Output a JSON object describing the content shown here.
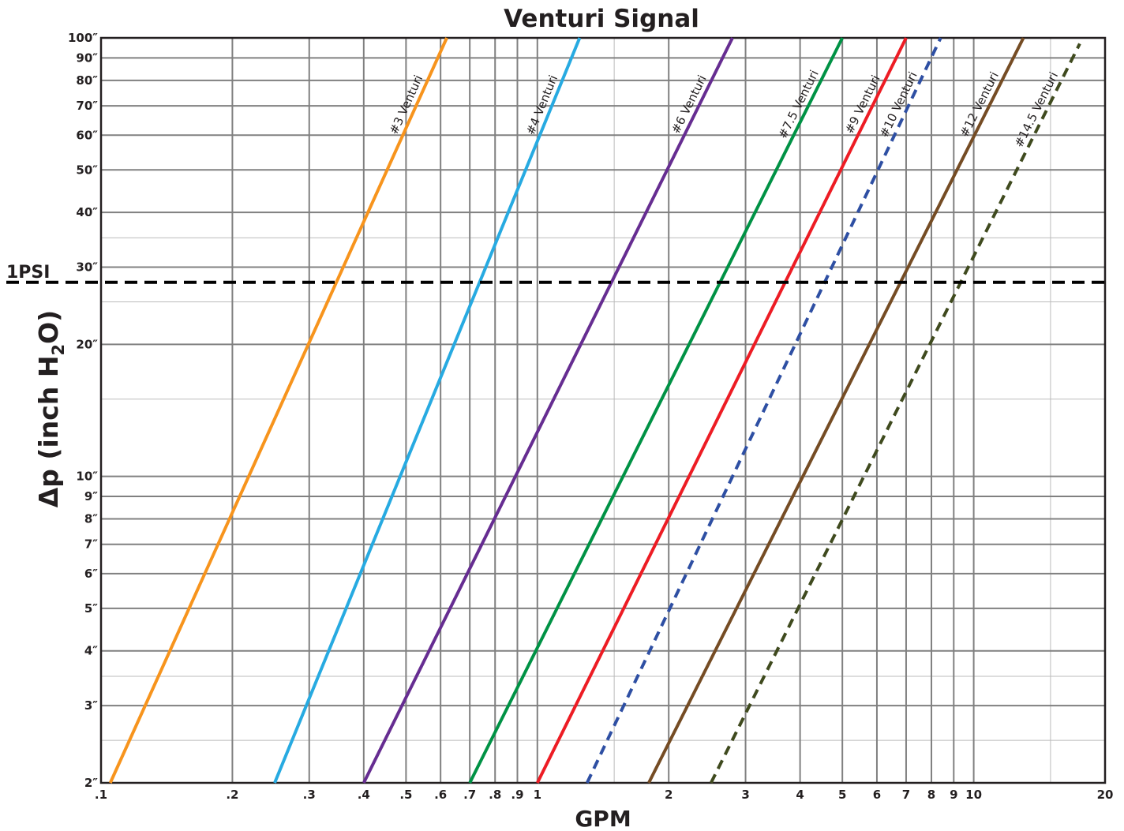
{
  "chart_data": {
    "type": "line",
    "title": "Venturi Signal",
    "xlabel": "GPM",
    "ylabel_main": "Δp (inch H",
    "ylabel_sub": "2",
    "ylabel_tail": "O)",
    "x_scale": "log",
    "y_scale": "log",
    "xlim": [
      0.1,
      20
    ],
    "ylim": [
      2,
      100
    ],
    "grid": true,
    "x_ticks": [
      {
        "v": 0.1,
        "label": ".1"
      },
      {
        "v": 0.2,
        "label": ".2"
      },
      {
        "v": 0.3,
        "label": ".3"
      },
      {
        "v": 0.4,
        "label": ".4"
      },
      {
        "v": 0.5,
        "label": ".5"
      },
      {
        "v": 0.6,
        "label": ".6"
      },
      {
        "v": 0.7,
        "label": ".7"
      },
      {
        "v": 0.8,
        "label": ".8"
      },
      {
        "v": 0.9,
        "label": ".9"
      },
      {
        "v": 1,
        "label": "1"
      },
      {
        "v": 2,
        "label": "2"
      },
      {
        "v": 3,
        "label": "3"
      },
      {
        "v": 4,
        "label": "4"
      },
      {
        "v": 5,
        "label": "5"
      },
      {
        "v": 6,
        "label": "6"
      },
      {
        "v": 7,
        "label": "7"
      },
      {
        "v": 8,
        "label": "8"
      },
      {
        "v": 9,
        "label": "9"
      },
      {
        "v": 10,
        "label": "10"
      },
      {
        "v": 20,
        "label": "20"
      }
    ],
    "y_ticks": [
      {
        "v": 2,
        "label": "2″"
      },
      {
        "v": 3,
        "label": "3″"
      },
      {
        "v": 4,
        "label": "4″"
      },
      {
        "v": 5,
        "label": "5″"
      },
      {
        "v": 6,
        "label": "6″"
      },
      {
        "v": 7,
        "label": "7″"
      },
      {
        "v": 8,
        "label": "8″"
      },
      {
        "v": 9,
        "label": "9″"
      },
      {
        "v": 10,
        "label": "10″"
      },
      {
        "v": 20,
        "label": "20″"
      },
      {
        "v": 30,
        "label": "30″"
      },
      {
        "v": 40,
        "label": "40″"
      },
      {
        "v": 50,
        "label": "50″"
      },
      {
        "v": 60,
        "label": "60″"
      },
      {
        "v": 70,
        "label": "70″"
      },
      {
        "v": 80,
        "label": "80″"
      },
      {
        "v": 90,
        "label": "90″"
      },
      {
        "v": 100,
        "label": "100″"
      }
    ],
    "x_minor_grid": [
      1.5,
      15
    ],
    "y_minor_grid": [
      2.5,
      3.5,
      15,
      25,
      35
    ],
    "reference_line": {
      "label": "1PSI",
      "y": 27.7,
      "style": "dashed",
      "color": "#000000"
    },
    "series": [
      {
        "name": "#3 Venturi",
        "color": "#f7941d",
        "dash": false,
        "points": [
          [
            0.105,
            2
          ],
          [
            0.62,
            100
          ]
        ]
      },
      {
        "name": "#4 Venturi",
        "color": "#27aae1",
        "dash": false,
        "points": [
          [
            0.25,
            2
          ],
          [
            1.25,
            100
          ]
        ]
      },
      {
        "name": "#6 Venturi",
        "color": "#662d91",
        "dash": false,
        "points": [
          [
            0.4,
            2
          ],
          [
            2.8,
            100
          ]
        ]
      },
      {
        "name": "#7.5 Venturi",
        "color": "#009245",
        "dash": false,
        "points": [
          [
            0.7,
            2
          ],
          [
            5.0,
            100
          ]
        ]
      },
      {
        "name": "#9 Venturi",
        "color": "#ed1c24",
        "dash": false,
        "points": [
          [
            1.0,
            2
          ],
          [
            7.0,
            100
          ]
        ]
      },
      {
        "name": "#10 Venturi",
        "color": "#2e4fa3",
        "dash": true,
        "points": [
          [
            1.3,
            2
          ],
          [
            8.4,
            100
          ]
        ]
      },
      {
        "name": "#12 Venturi",
        "color": "#754c24",
        "dash": false,
        "points": [
          [
            1.8,
            2
          ],
          [
            13.0,
            100
          ]
        ]
      },
      {
        "name": "#14.5 Venturi",
        "color": "#3f4a1e",
        "dash": true,
        "points": [
          [
            2.5,
            2
          ],
          [
            17.5,
            97
          ]
        ]
      }
    ]
  }
}
